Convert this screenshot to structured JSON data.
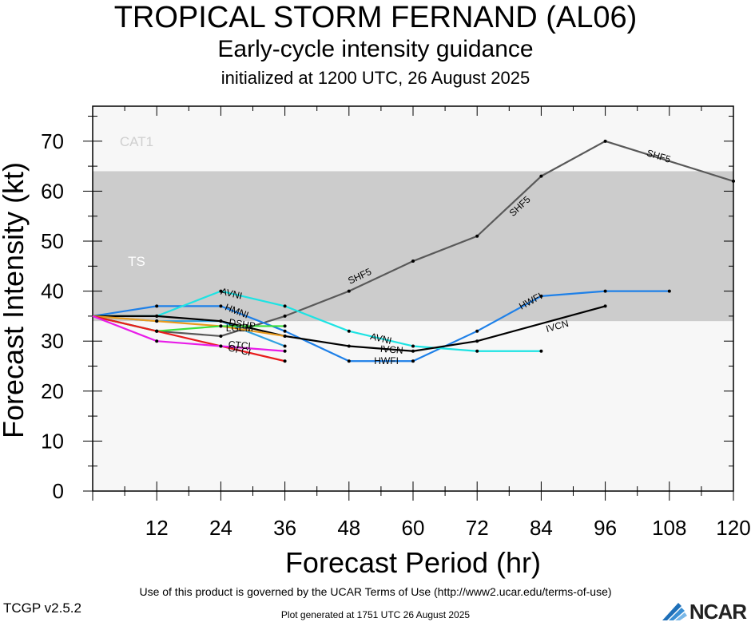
{
  "chart_data": {
    "type": "line",
    "title": "TROPICAL STORM FERNAND (AL06)",
    "subtitle": "Early-cycle intensity guidance",
    "initialized": "initialized at 1200 UTC, 26 August 2025",
    "xlabel": "Forecast Period (hr)",
    "ylabel": "Forecast Intensity (kt)",
    "xlim": [
      0,
      120
    ],
    "ylim": [
      0,
      77
    ],
    "xticks": [
      12,
      24,
      36,
      48,
      60,
      72,
      84,
      96,
      108,
      120
    ],
    "yticks": [
      0,
      10,
      20,
      30,
      40,
      50,
      60,
      70
    ],
    "bands": [
      {
        "name": "TS",
        "from": 34,
        "to": 64,
        "color": "#cccccc"
      },
      {
        "name": "CAT1",
        "from": 64,
        "to": 77,
        "color": "#f7f7f7"
      }
    ],
    "series": [
      {
        "name": "SHF5",
        "color": "#595959",
        "x": [
          0,
          12,
          24,
          36,
          48,
          60,
          72,
          84,
          96,
          120
        ],
        "y": [
          35,
          32,
          31,
          35,
          40,
          46,
          51,
          63,
          70,
          62
        ]
      },
      {
        "name": "HWFI",
        "color": "#1e80e8",
        "x": [
          0,
          12,
          24,
          36,
          48,
          60,
          72,
          84,
          96,
          108
        ],
        "y": [
          35,
          37,
          37,
          32,
          26,
          26,
          32,
          39,
          40,
          40
        ]
      },
      {
        "name": "AVNI",
        "color": "#1de3e3",
        "x": [
          0,
          12,
          24,
          36,
          48,
          60,
          72,
          84
        ],
        "y": [
          35,
          35,
          40,
          37,
          32,
          29,
          28,
          28
        ]
      },
      {
        "name": "HMNI",
        "color": "#2fa0e0",
        "x": [
          0,
          12,
          24,
          36
        ],
        "y": [
          35,
          34,
          34,
          29
        ]
      },
      {
        "name": "IVCN",
        "color": "#000000",
        "x": [
          0,
          12,
          24,
          36,
          48,
          60,
          72,
          96
        ],
        "y": [
          35,
          35,
          34,
          31,
          29,
          28,
          30,
          37
        ]
      },
      {
        "name": "DSHP",
        "color": "#e89a1c",
        "x": [
          0,
          12,
          24,
          36
        ],
        "y": [
          35,
          34,
          33,
          31
        ]
      },
      {
        "name": "LGEM",
        "color": "#3ce03c",
        "x": [
          0,
          12,
          24,
          36
        ],
        "y": [
          35,
          32,
          33,
          33
        ]
      },
      {
        "name": "OFCI",
        "color": "#e81c1c",
        "x": [
          0,
          12,
          24,
          36
        ],
        "y": [
          35,
          32,
          29,
          26
        ]
      },
      {
        "name": "CTCI",
        "color": "#e81ce8",
        "x": [
          0,
          12,
          24,
          36
        ],
        "y": [
          35,
          30,
          29,
          28
        ]
      }
    ],
    "line_labels": [
      {
        "text": "SHF5",
        "x": 50,
        "y": 43,
        "series": 0
      },
      {
        "text": "SHF5",
        "x": 80,
        "y": 57,
        "series": 0
      },
      {
        "text": "SHF5",
        "x": 106,
        "y": 67,
        "series": 0
      },
      {
        "text": "HWFI",
        "x": 55,
        "y": 26,
        "series": 1
      },
      {
        "text": "HWFI",
        "x": 82,
        "y": 38,
        "series": 1
      },
      {
        "text": "AVNI",
        "x": 26,
        "y": 39.5,
        "series": 2
      },
      {
        "text": "AVNI",
        "x": 54,
        "y": 30.5,
        "series": 2
      },
      {
        "text": "HMNI",
        "x": 27,
        "y": 36,
        "series": 3
      },
      {
        "text": "IVCN",
        "x": 56,
        "y": 28.3,
        "series": 4
      },
      {
        "text": "IVCN",
        "x": 87,
        "y": 33,
        "series": 4
      },
      {
        "text": "DSHP",
        "x": 28,
        "y": 33.4,
        "series": 5
      },
      {
        "text": "LGEM",
        "x": 27.5,
        "y": 32.6,
        "series": 6
      },
      {
        "text": "OFCI",
        "x": 27.5,
        "y": 28.2,
        "series": 7
      },
      {
        "text": "CTCI",
        "x": 27.5,
        "y": 29.2,
        "series": 8
      }
    ]
  },
  "footer": {
    "terms": "Use of this product is governed by the UCAR Terms of Use (http://www2.ucar.edu/terms-of-use)",
    "generated": "Plot generated at 1751 UTC   26 August 2025",
    "version": "TCGP v2.5.2",
    "logo": "NCAR"
  }
}
